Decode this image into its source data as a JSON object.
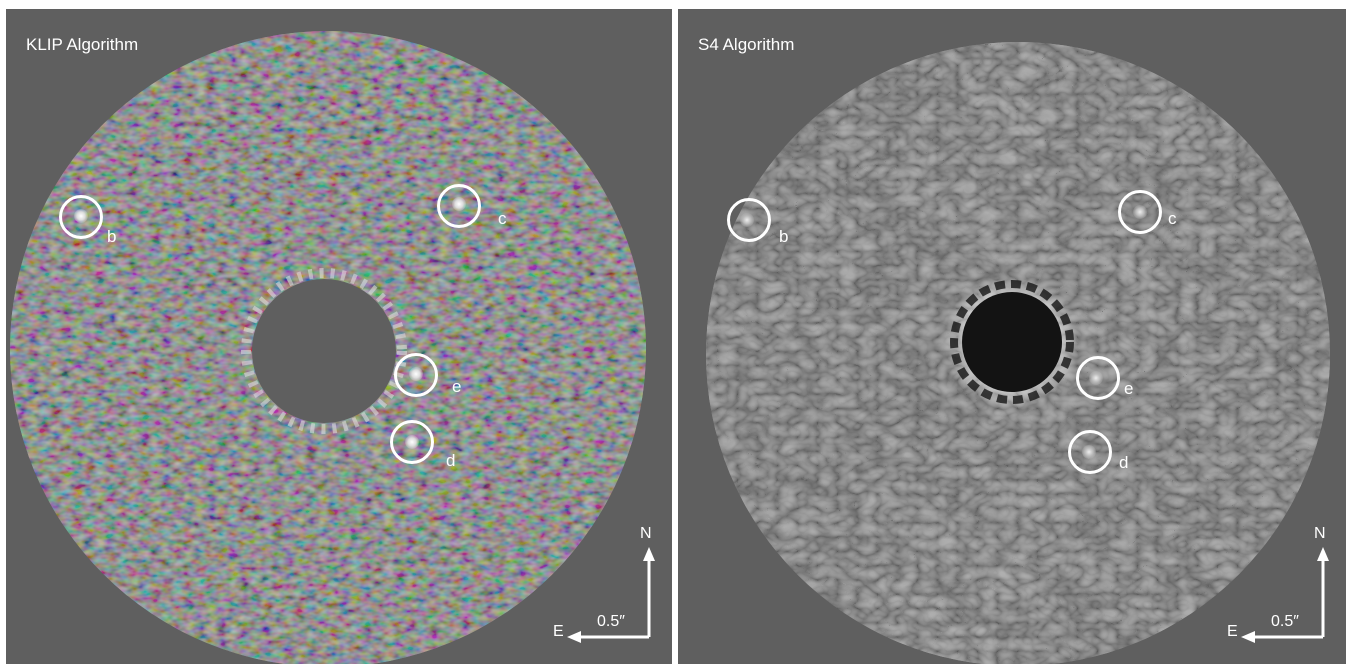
{
  "panels": [
    {
      "title": "KLIP Algorithm",
      "planets": [
        "b",
        "c",
        "e",
        "d"
      ],
      "compass": {
        "north": "N",
        "east": "E",
        "scale": "0.5″"
      }
    },
    {
      "title": "S4 Algorithm",
      "planets": [
        "b",
        "c",
        "e",
        "d"
      ],
      "compass": {
        "north": "N",
        "east": "E",
        "scale": "0.5″"
      }
    }
  ]
}
